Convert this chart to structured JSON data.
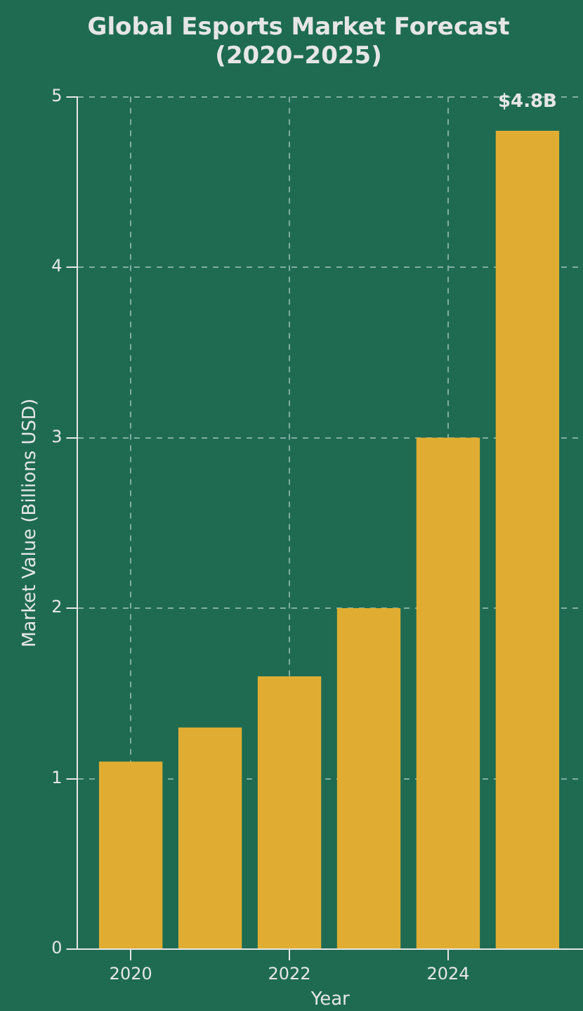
{
  "chart_data": {
    "type": "bar",
    "title": "Global Esports Market Forecast (2020–2025)",
    "xlabel": "Year",
    "ylabel": "Market Value (Billions USD)",
    "x": [
      2020,
      2021,
      2022,
      2023,
      2024,
      2025
    ],
    "values": [
      1.1,
      1.3,
      1.6,
      2.0,
      3.0,
      4.8
    ],
    "color": "#e0ad32",
    "xlim": [
      2019.33,
      2025.7
    ],
    "xticks": [
      2020,
      2022,
      2024
    ],
    "ylim": [
      0,
      5
    ],
    "yticks": [
      0,
      1,
      2,
      3,
      4,
      5
    ],
    "grid": true,
    "legend": false,
    "annotations": [
      {
        "text": "$4.8B",
        "x": 2025,
        "y": 4.8
      }
    ]
  }
}
